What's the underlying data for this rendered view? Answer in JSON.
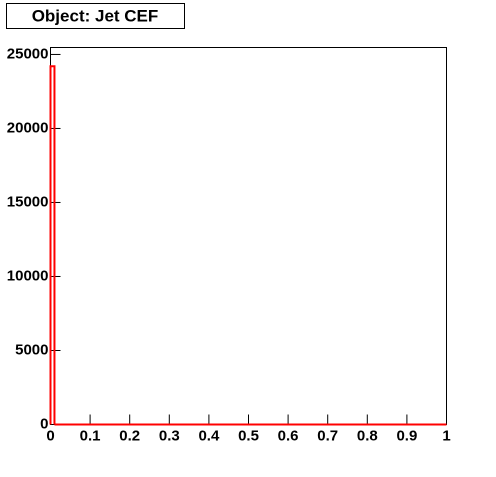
{
  "chart_data": {
    "type": "histogram",
    "title": "Object: Jet CEF",
    "bins": [
      0,
      0.01,
      1
    ],
    "counts": [
      24200,
      0
    ],
    "color": "#ff0000",
    "xlim": [
      0,
      1
    ],
    "xticks": [
      0,
      0.1,
      0.2,
      0.3,
      0.4,
      0.5,
      0.6,
      0.7,
      0.8,
      0.9,
      1
    ],
    "ylim": [
      0,
      25470
    ],
    "yticks": [
      0,
      5000,
      10000,
      15000,
      20000,
      25000
    ]
  }
}
